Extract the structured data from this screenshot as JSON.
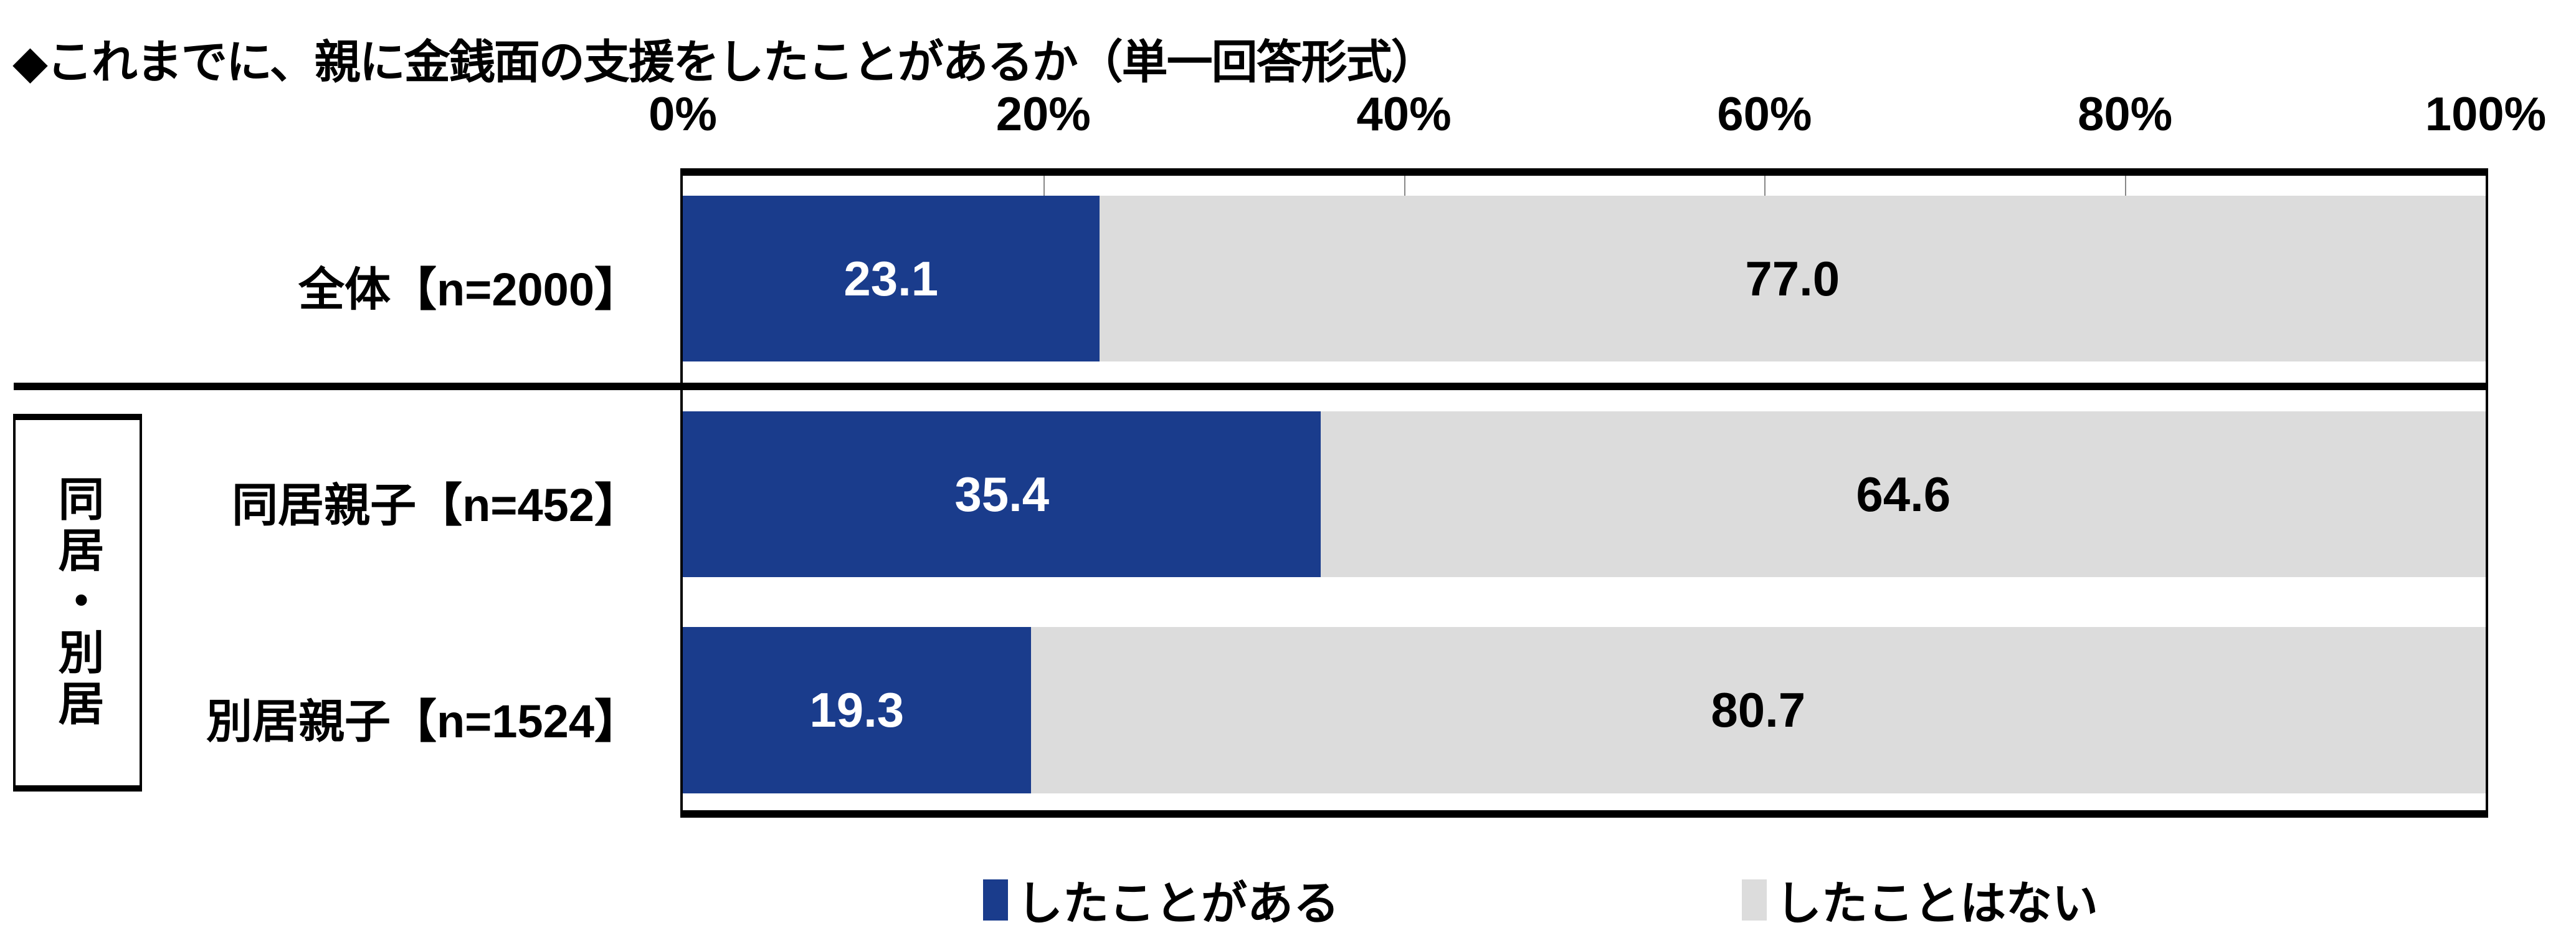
{
  "chart_data": {
    "type": "bar",
    "orientation": "horizontal-stacked-100",
    "title": "◆これまでに、親に金銭面の支援をしたことがあるか（単一回答形式）",
    "x_ticks": [
      "0%",
      "20%",
      "40%",
      "60%",
      "80%",
      "100%"
    ],
    "xlim": [
      0,
      100
    ],
    "categories": [
      "全体【n=2000】",
      "同居親子【n=452】",
      "別居親子【n=1524】"
    ],
    "group_label": "同居・別居",
    "series": [
      {
        "name": "したことがある",
        "color": "#1a3c8c",
        "label_color": "#ffffff",
        "values": [
          23.1,
          35.4,
          19.3
        ],
        "labels": [
          "23.1",
          "35.4",
          "19.3"
        ]
      },
      {
        "name": "したことはない",
        "color": "#dcdcdc",
        "label_color": "#000000",
        "values": [
          77.0,
          64.6,
          80.7
        ],
        "labels": [
          "77.0",
          "64.6",
          "80.7"
        ]
      }
    ],
    "legend_position": "bottom"
  }
}
